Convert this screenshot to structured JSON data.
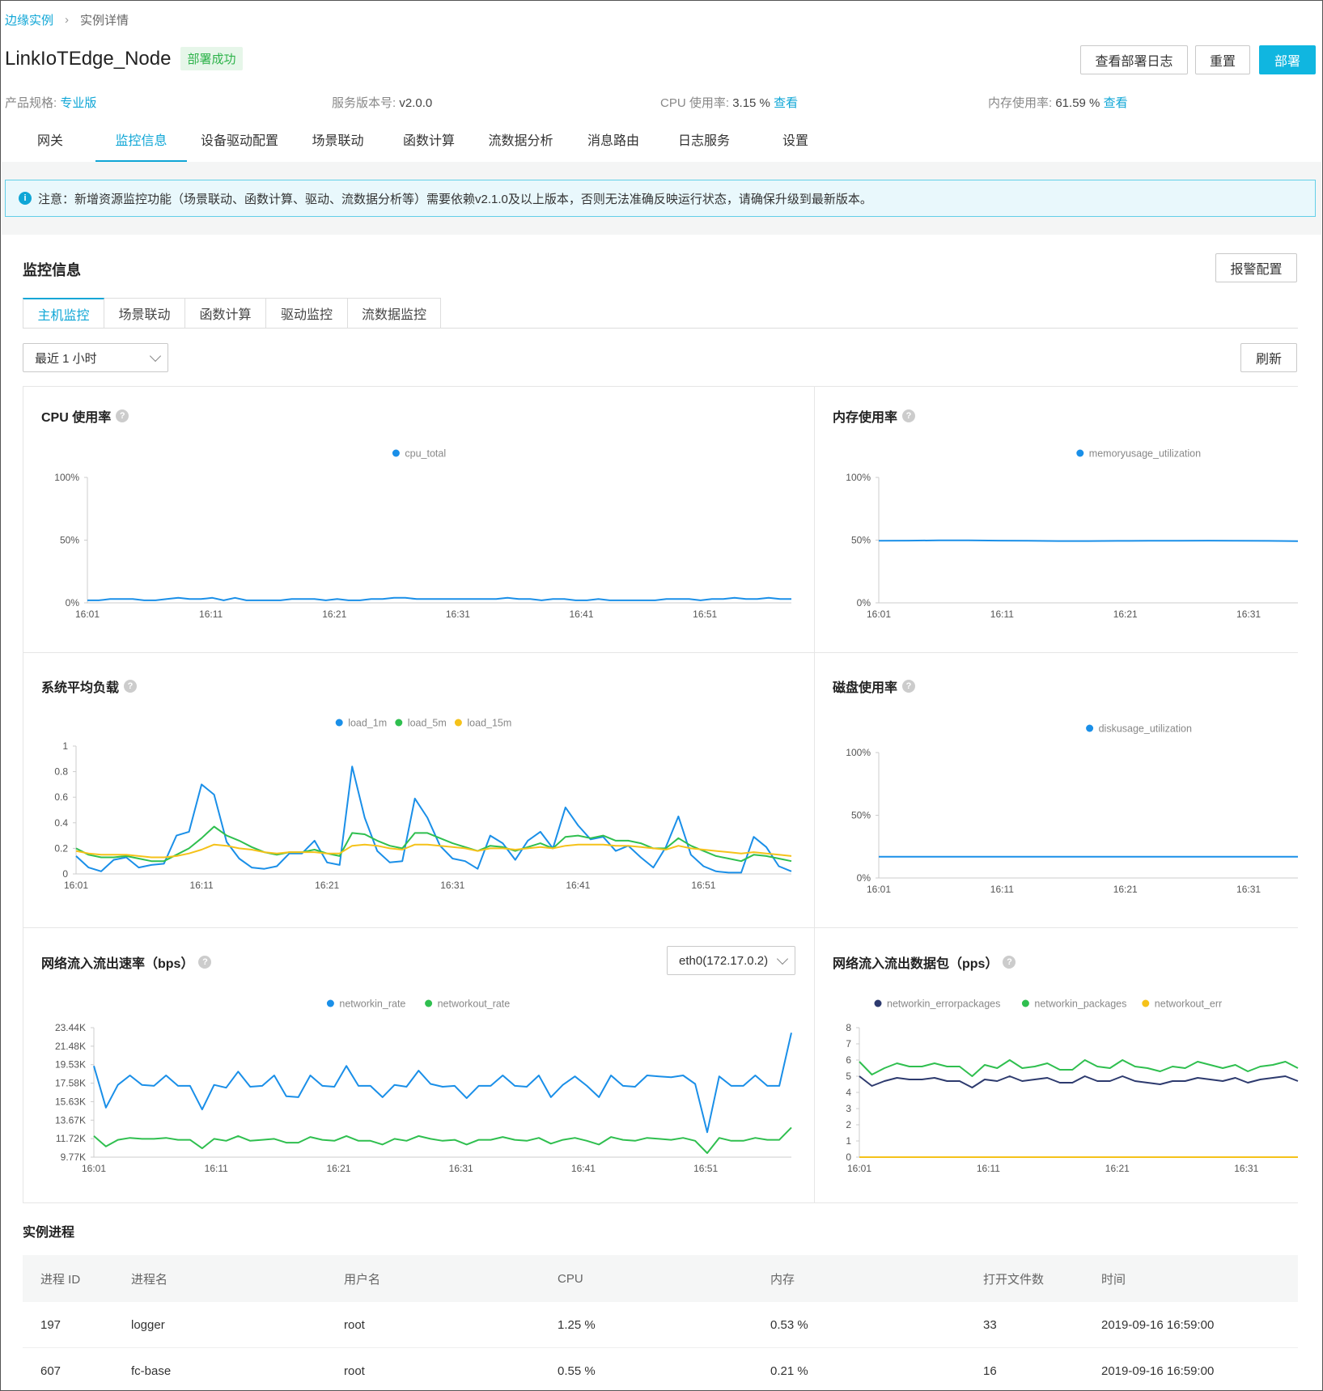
{
  "breadcrumb": {
    "parent": "边缘实例",
    "current": "实例详情"
  },
  "header": {
    "title": "LinkIoTEdge_Node",
    "status": "部署成功",
    "buttons": {
      "logs": "查看部署日志",
      "reset": "重置",
      "deploy": "部署"
    }
  },
  "info": {
    "spec_label": "产品规格:",
    "spec_value": "专业版",
    "version_label": "服务版本号:",
    "version_value": "v2.0.0",
    "cpu_label": "CPU 使用率:",
    "cpu_value": "3.15 %",
    "cpu_link": "查看",
    "mem_label": "内存使用率:",
    "mem_value": "61.59 %",
    "mem_link": "查看"
  },
  "tabs": [
    "网关",
    "监控信息",
    "设备驱动配置",
    "场景联动",
    "函数计算",
    "流数据分析",
    "消息路由",
    "日志服务",
    "设置"
  ],
  "notice": "注意：新增资源监控功能（场景联动、函数计算、驱动、流数据分析等）需要依赖v2.1.0及以上版本，否则无法准确反映运行状态，请确保升级到最新版本。",
  "monitor": {
    "title": "监控信息",
    "alarm_button": "报警配置",
    "subtabs": [
      "主机监控",
      "场景联动",
      "函数计算",
      "驱动监控",
      "流数据监控"
    ],
    "range": "最近 1 小时",
    "refresh": "刷新",
    "interface": "eth0(172.17.0.2)"
  },
  "colors": {
    "accent": "#0fa6d6",
    "blue": "#1a8fe8",
    "green": "#2fbf4f",
    "yellow": "#f5c21a",
    "green_light": "#5fd37a",
    "navy": "#2d3a6e"
  },
  "charts": [
    {
      "title": "CPU 使用率",
      "type": "line",
      "x_ticks": [
        "16:01",
        "16:11",
        "16:21",
        "16:31",
        "16:41",
        "16:51"
      ],
      "y_ticks": [
        "100%",
        "50%",
        "0%"
      ],
      "ylim": [
        0,
        100
      ],
      "series": [
        {
          "name": "cpu_total",
          "color": "#1a8fe8",
          "values": [
            2,
            2,
            3,
            3,
            3,
            2,
            2,
            3,
            4,
            3,
            3,
            4,
            2,
            4,
            2,
            2,
            2,
            2,
            3,
            3,
            3,
            2,
            3,
            2,
            2,
            3,
            3,
            4,
            4,
            3,
            3,
            3,
            3,
            3,
            3,
            3,
            3,
            4,
            3,
            3,
            2,
            3,
            3,
            2,
            2,
            3,
            2,
            2,
            2,
            2,
            2,
            3,
            3,
            3,
            2,
            3,
            3,
            4,
            3,
            3,
            4,
            3,
            3
          ]
        }
      ]
    },
    {
      "title": "内存使用率",
      "type": "line",
      "x_ticks": [
        "16:01",
        "16:11",
        "16:21",
        "16:31"
      ],
      "y_ticks": [
        "100%",
        "50%",
        "0%"
      ],
      "ylim": [
        0,
        100
      ],
      "series": [
        {
          "name": "memoryusage_utilization",
          "color": "#1a8fe8",
          "values": [
            49.5,
            49.6,
            49.8,
            49.9,
            49.6,
            49.5,
            49.3,
            49.3,
            49.4,
            49.5,
            49.5,
            49.6,
            49.5,
            49.4,
            49.2
          ]
        }
      ]
    },
    {
      "title": "系统平均负载",
      "type": "line",
      "x_ticks": [
        "16:01",
        "16:11",
        "16:21",
        "16:31",
        "16:41",
        "16:51"
      ],
      "y_ticks": [
        "1",
        "0.8",
        "0.6",
        "0.4",
        "0.2",
        "0"
      ],
      "ylim": [
        0,
        1
      ],
      "series": [
        {
          "name": "load_1m",
          "color": "#1a8fe8",
          "values": [
            0.14,
            0.05,
            0.02,
            0.11,
            0.13,
            0.05,
            0.07,
            0.08,
            0.3,
            0.33,
            0.7,
            0.62,
            0.25,
            0.12,
            0.05,
            0.04,
            0.06,
            0.16,
            0.16,
            0.26,
            0.09,
            0.07,
            0.84,
            0.44,
            0.18,
            0.09,
            0.1,
            0.59,
            0.44,
            0.22,
            0.12,
            0.1,
            0.04,
            0.3,
            0.24,
            0.11,
            0.26,
            0.33,
            0.2,
            0.52,
            0.38,
            0.27,
            0.29,
            0.18,
            0.22,
            0.13,
            0.05,
            0.21,
            0.45,
            0.15,
            0.06,
            0.02,
            0.01,
            0.01,
            0.29,
            0.21,
            0.06,
            0.02
          ]
        },
        {
          "name": "load_5m",
          "color": "#2fbf4f",
          "values": [
            0.2,
            0.15,
            0.13,
            0.13,
            0.14,
            0.12,
            0.1,
            0.1,
            0.15,
            0.2,
            0.28,
            0.37,
            0.3,
            0.26,
            0.21,
            0.17,
            0.15,
            0.17,
            0.17,
            0.19,
            0.16,
            0.14,
            0.32,
            0.31,
            0.26,
            0.22,
            0.2,
            0.32,
            0.32,
            0.28,
            0.24,
            0.21,
            0.18,
            0.22,
            0.21,
            0.18,
            0.21,
            0.24,
            0.2,
            0.29,
            0.3,
            0.28,
            0.3,
            0.26,
            0.26,
            0.24,
            0.2,
            0.2,
            0.28,
            0.22,
            0.18,
            0.14,
            0.12,
            0.1,
            0.15,
            0.14,
            0.12,
            0.1
          ]
        },
        {
          "name": "load_15m",
          "color": "#f5c21a",
          "values": [
            0.18,
            0.16,
            0.15,
            0.15,
            0.15,
            0.14,
            0.13,
            0.13,
            0.14,
            0.16,
            0.19,
            0.23,
            0.22,
            0.2,
            0.19,
            0.17,
            0.16,
            0.17,
            0.17,
            0.17,
            0.16,
            0.16,
            0.22,
            0.23,
            0.22,
            0.2,
            0.19,
            0.23,
            0.23,
            0.22,
            0.21,
            0.2,
            0.18,
            0.2,
            0.2,
            0.19,
            0.2,
            0.21,
            0.2,
            0.22,
            0.23,
            0.23,
            0.23,
            0.22,
            0.22,
            0.21,
            0.2,
            0.19,
            0.22,
            0.2,
            0.19,
            0.18,
            0.17,
            0.16,
            0.17,
            0.16,
            0.15,
            0.14
          ]
        }
      ]
    },
    {
      "title": "磁盘使用率",
      "type": "line",
      "x_ticks": [
        "16:01",
        "16:11",
        "16:21",
        "16:31"
      ],
      "y_ticks": [
        "100%",
        "50%",
        "0%"
      ],
      "ylim": [
        0,
        100
      ],
      "series": [
        {
          "name": "diskusage_utilization",
          "color": "#1a8fe8",
          "values": [
            17,
            17,
            17,
            17,
            17,
            17,
            17,
            17,
            17,
            17,
            17,
            17
          ]
        }
      ]
    },
    {
      "title": "网络流入流出速率（bps）",
      "type": "line",
      "x_ticks": [
        "16:01",
        "16:11",
        "16:21",
        "16:31",
        "16:41",
        "16:51"
      ],
      "y_ticks": [
        "23.44K",
        "21.48K",
        "19.53K",
        "17.58K",
        "15.63K",
        "13.67K",
        "11.72K",
        "9.77K"
      ],
      "ylim": [
        9.77,
        23.44
      ],
      "series": [
        {
          "name": "networkin_rate",
          "color": "#1a8fe8",
          "values": [
            19.4,
            15,
            17.4,
            18.4,
            17.4,
            17.3,
            18.4,
            17.3,
            17.3,
            14.8,
            17.4,
            17.1,
            18.8,
            17.2,
            17.3,
            18.4,
            16.2,
            16.1,
            18.4,
            17.3,
            17.2,
            19.4,
            17.3,
            17.3,
            16.1,
            17.4,
            17.2,
            18.9,
            17.5,
            17.2,
            17.3,
            16,
            17.3,
            17.3,
            18.4,
            17.3,
            17.2,
            18.4,
            16.1,
            17.4,
            18.3,
            17.3,
            16.1,
            18.4,
            17.3,
            17.2,
            18.4,
            18.3,
            18.2,
            18.4,
            17.5,
            12.4,
            18.3,
            17.3,
            17.3,
            18.4,
            17.3,
            17.3,
            22.9
          ]
        },
        {
          "name": "networkout_rate",
          "color": "#2fbf4f",
          "values": [
            12,
            10.9,
            11.6,
            11.8,
            11.7,
            11.7,
            11.8,
            11.6,
            11.6,
            10.7,
            11.7,
            11.5,
            12,
            11.5,
            11.6,
            11.7,
            11.3,
            11.3,
            11.9,
            11.6,
            11.5,
            12,
            11.5,
            11.5,
            11.1,
            11.7,
            11.5,
            12,
            11.7,
            11.5,
            11.6,
            11.1,
            11.6,
            11.6,
            11.9,
            11.6,
            11.5,
            11.8,
            11.2,
            11.6,
            11.8,
            11.5,
            11.1,
            11.9,
            11.6,
            11.5,
            11.8,
            11.7,
            11.6,
            11.8,
            11.5,
            10.2,
            11.8,
            11.5,
            11.5,
            11.8,
            11.6,
            11.6,
            12.9
          ]
        }
      ]
    },
    {
      "title": "网络流入流出数据包（pps）",
      "type": "line",
      "x_ticks": [
        "16:01",
        "16:11",
        "16:21",
        "16:31"
      ],
      "y_ticks": [
        "8",
        "7",
        "6",
        "5",
        "4",
        "3",
        "2",
        "1",
        "0"
      ],
      "ylim": [
        0,
        8
      ],
      "series": [
        {
          "name": "networkin_errorpackages",
          "color": "#2d3a6e",
          "values": [
            5,
            4.4,
            4.7,
            4.9,
            4.8,
            4.8,
            4.9,
            4.7,
            4.7,
            4.3,
            4.8,
            4.7,
            5,
            4.7,
            4.8,
            4.9,
            4.6,
            4.6,
            5,
            4.7,
            4.7,
            5,
            4.7,
            4.6,
            4.5,
            4.7,
            4.7,
            4.9,
            4.8,
            4.7,
            4.9,
            4.6,
            4.8,
            4.9,
            5,
            4.7
          ]
        },
        {
          "name": "networkin_packages",
          "color": "#2fbf4f",
          "values": [
            5.9,
            5.1,
            5.5,
            5.8,
            5.6,
            5.6,
            5.8,
            5.6,
            5.6,
            5,
            5.7,
            5.5,
            6,
            5.5,
            5.6,
            5.8,
            5.4,
            5.4,
            6,
            5.6,
            5.5,
            6,
            5.6,
            5.5,
            5.3,
            5.6,
            5.5,
            5.9,
            5.7,
            5.5,
            5.7,
            5.3,
            5.6,
            5.7,
            5.9,
            5.5
          ]
        },
        {
          "name": "networkout_err",
          "color": "#f5c21a",
          "values": [
            0,
            0,
            0,
            0,
            0,
            0,
            0,
            0,
            0,
            0,
            0,
            0,
            0,
            0,
            0,
            0,
            0,
            0,
            0,
            0,
            0,
            0,
            0,
            0,
            0,
            0,
            0,
            0,
            0,
            0,
            0,
            0,
            0,
            0,
            0,
            0
          ]
        }
      ]
    }
  ],
  "process": {
    "title": "实例进程",
    "headers": [
      "进程 ID",
      "进程名",
      "用户名",
      "CPU",
      "内存",
      "打开文件数",
      "时间"
    ],
    "rows": [
      [
        "197",
        "logger",
        "root",
        "1.25 %",
        "0.53 %",
        "33",
        "2019-09-16 16:59:00"
      ],
      [
        "607",
        "fc-base",
        "root",
        "0.55 %",
        "0.21 %",
        "16",
        "2019-09-16 16:59:00"
      ]
    ]
  }
}
